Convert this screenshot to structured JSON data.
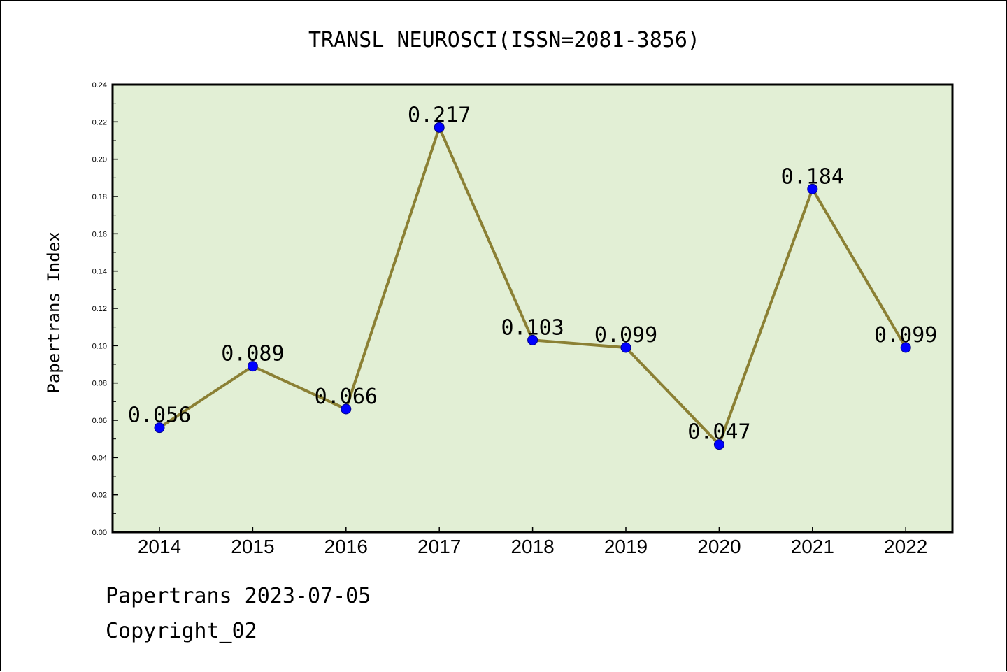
{
  "chart_data": {
    "type": "line",
    "title": "TRANSL NEUROSCI(ISSN=2081-3856)",
    "xlabel": "",
    "ylabel": "Papertrans Index",
    "categories": [
      "2014",
      "2015",
      "2016",
      "2017",
      "2018",
      "2019",
      "2020",
      "2021",
      "2022"
    ],
    "series": [
      {
        "values": [
          0.056,
          0.089,
          0.066,
          0.217,
          0.103,
          0.099,
          0.047,
          0.184,
          0.099
        ],
        "labels": [
          "0.056",
          "0.089",
          "0.066",
          "0.217",
          "0.103",
          "0.099",
          "0.047",
          "0.184",
          "0.099"
        ]
      }
    ],
    "ylim": [
      0,
      0.24
    ],
    "yticks": [
      "0.00",
      "0.02",
      "0.04",
      "0.06",
      "0.08",
      "0.10",
      "0.12",
      "0.14",
      "0.16",
      "0.18",
      "0.20",
      "0.22",
      "0.24"
    ],
    "grid": false,
    "legend": "none",
    "colors": {
      "plot_background": "#e2efd5",
      "line": "#8b8034",
      "marker": "#0000ff"
    }
  },
  "footer": {
    "line1": "Papertrans 2023-07-05",
    "line2": "Copyright_02"
  }
}
